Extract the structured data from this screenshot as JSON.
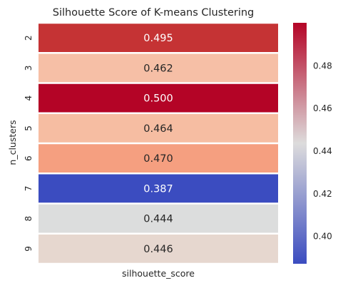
{
  "chart_data": {
    "type": "heatmap",
    "title": "Silhouette Score of K-means Clustering",
    "xlabel": "silhouette_score",
    "ylabel": "n_clusters",
    "columns": [],
    "rows": [
      "2",
      "3",
      "4",
      "5",
      "6",
      "7",
      "8",
      "9"
    ],
    "values": [
      0.495,
      0.462,
      0.5,
      0.464,
      0.47,
      0.387,
      0.444,
      0.446
    ],
    "cell_labels": [
      "0.495",
      "0.462",
      "0.500",
      "0.464",
      "0.470",
      "0.387",
      "0.444",
      "0.446"
    ],
    "colormap": "coolwarm",
    "colors": {
      "low": "#3b4cc0",
      "mid": "#dddcdc",
      "high": "#b40426",
      "cells": [
        "#c53334",
        "#f6bfa6",
        "#b40426",
        "#f6bda2",
        "#f59f80",
        "#3b4cc0",
        "#dcdddd",
        "#e6d7cf"
      ]
    },
    "colorbar": {
      "range": [
        0.387,
        0.5
      ],
      "ticks": [
        0.4,
        0.42,
        0.44,
        0.46,
        0.48
      ],
      "tick_labels": [
        "0.40",
        "0.42",
        "0.44",
        "0.46",
        "0.48"
      ]
    },
    "grid": false,
    "legend": "right"
  }
}
